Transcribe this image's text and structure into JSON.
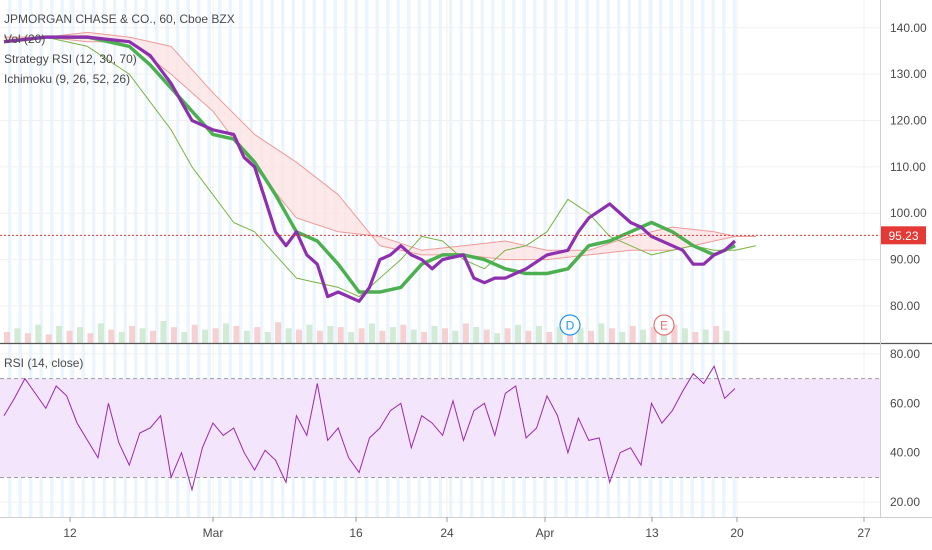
{
  "chart_data": [
    {
      "type": "line",
      "panel": "price",
      "title": "JPMORGAN CHASE & CO., 60, Cboe BZX",
      "indicators": [
        "Vol (20)",
        "Strategy RSI (12, 30, 70)",
        "Ichimoku (9, 26, 52, 26)"
      ],
      "ylim": [
        72,
        146
      ],
      "y_ticks": [
        "80.00",
        "90.00",
        "100.00",
        "110.00",
        "120.00",
        "130.00",
        "140.00"
      ],
      "last_price": "95.23",
      "markers": [
        {
          "label": "D",
          "x": 27.1
        },
        {
          "label": "E",
          "x": 31.6
        }
      ],
      "series": [
        {
          "name": "price",
          "color": "#8e2fb0",
          "x": [
            0,
            2,
            4,
            6,
            7,
            8,
            8.5,
            9,
            10,
            11,
            11.5,
            12,
            12.5,
            13,
            13.5,
            14,
            14.5,
            15,
            15.5,
            16,
            17,
            17.5,
            18,
            18.5,
            19,
            19.5,
            20,
            20.5,
            21,
            22,
            22.5,
            23,
            23.5,
            24,
            25,
            26,
            27,
            27.5,
            28,
            29,
            30,
            30.5,
            31,
            32,
            32.5,
            33,
            33.5,
            34,
            34.5,
            35
          ],
          "y": [
            137,
            138,
            138,
            137,
            134,
            128,
            124,
            120,
            118,
            117,
            112,
            110,
            103,
            96,
            93,
            96,
            91,
            89,
            82,
            83,
            81,
            84,
            90,
            91,
            93,
            91,
            90,
            88,
            90,
            91,
            86,
            85,
            86,
            86,
            88,
            91,
            92,
            96,
            99,
            102,
            98,
            97,
            95,
            93,
            92,
            89,
            89,
            91,
            92,
            94
          ]
        },
        {
          "name": "ichimoku-base",
          "color": "#4caf50",
          "x": [
            0,
            2,
            4,
            6,
            7,
            8,
            9,
            10,
            11,
            12,
            13,
            14,
            15,
            16,
            17,
            18,
            19,
            20,
            21,
            22,
            23,
            24,
            25,
            26,
            27,
            28,
            29,
            30,
            31,
            32,
            33,
            34,
            35
          ],
          "y": [
            137,
            138,
            138,
            136,
            132,
            127,
            122,
            117,
            116,
            111,
            104,
            96,
            94,
            89,
            83,
            83,
            84,
            89,
            91,
            91,
            90,
            88,
            87,
            87,
            88,
            93,
            94,
            96,
            98,
            96,
            93,
            91,
            93
          ]
        },
        {
          "name": "ichimoku-span-a",
          "color": "#ef9a9a",
          "x": [
            0,
            2,
            4,
            6,
            8,
            10,
            12,
            14,
            16,
            18,
            20,
            22,
            24,
            26,
            28,
            30,
            32,
            34,
            35,
            36
          ],
          "y": [
            137,
            138,
            137,
            137,
            130,
            122,
            110,
            99,
            96,
            95,
            92,
            93,
            94,
            92,
            92,
            95,
            97,
            96,
            95,
            95
          ]
        },
        {
          "name": "ichimoku-span-b",
          "color": "#ef9a9a",
          "x": [
            0,
            2,
            4,
            6,
            8,
            10,
            12,
            14,
            16,
            18,
            20,
            22,
            24,
            26,
            28,
            30,
            32,
            34,
            35,
            36
          ],
          "y": [
            138,
            138,
            139,
            138,
            136,
            126,
            117,
            111,
            104,
            93,
            91,
            91,
            90,
            90,
            91,
            92,
            92,
            94,
            95,
            95
          ]
        },
        {
          "name": "lagging-span",
          "color": "#7cb342",
          "x": [
            0,
            2,
            4,
            6,
            8,
            9,
            10,
            11,
            12,
            13,
            14,
            15,
            16,
            17,
            18,
            19,
            20,
            21,
            22,
            23,
            24,
            25,
            26,
            27,
            28,
            29,
            30,
            31,
            32,
            33,
            34,
            35,
            36
          ],
          "y": [
            137,
            138,
            136,
            130,
            118,
            110,
            104,
            98,
            96,
            91,
            86,
            85,
            84,
            82,
            86,
            90,
            95,
            94,
            90,
            88,
            92,
            93,
            96,
            103,
            100,
            95,
            93,
            91,
            92,
            93,
            92,
            92,
            93
          ]
        }
      ],
      "volume": [
        9,
        12,
        8,
        15,
        7,
        14,
        10,
        13,
        8,
        16,
        11,
        9,
        14,
        12,
        10,
        18,
        13,
        9,
        15,
        11,
        12,
        16,
        14,
        10,
        13,
        9,
        17,
        12,
        11,
        15,
        10,
        14,
        13,
        9,
        12,
        16,
        10,
        13,
        15,
        11,
        9,
        14,
        12,
        10,
        16,
        13,
        11,
        8,
        12,
        15,
        10,
        14,
        9,
        13,
        11,
        12,
        10,
        16,
        12,
        9,
        14,
        11,
        13,
        10,
        15,
        12,
        9,
        11,
        14,
        10
      ]
    },
    {
      "type": "line",
      "panel": "rsi",
      "title": "RSI (14, close)",
      "ylim": [
        14,
        84
      ],
      "y_ticks": [
        "20.00",
        "40.00",
        "60.00",
        "80.00"
      ],
      "bands": [
        30,
        70
      ],
      "series": [
        {
          "name": "RSI",
          "color": "#9c27b0",
          "x": [
            0,
            0.5,
            1,
            1.5,
            2,
            2.5,
            3,
            3.5,
            4,
            4.5,
            5,
            5.5,
            6,
            6.5,
            7,
            7.5,
            8,
            8.5,
            9,
            9.5,
            10,
            10.5,
            11,
            11.5,
            12,
            12.5,
            13,
            13.5,
            14,
            14.5,
            15,
            15.5,
            16,
            16.5,
            17,
            17.5,
            18,
            18.5,
            19,
            19.5,
            20,
            20.5,
            21,
            21.5,
            22,
            22.5,
            23,
            23.5,
            24,
            24.5,
            25,
            25.5,
            26,
            26.5,
            27,
            27.5,
            28,
            28.5,
            29,
            29.5,
            30,
            30.5,
            31,
            31.5,
            32,
            32.5,
            33,
            33.5,
            34,
            34.5,
            35
          ],
          "y": [
            55,
            62,
            70,
            64,
            58,
            67,
            63,
            52,
            45,
            38,
            60,
            44,
            35,
            48,
            50,
            55,
            30,
            40,
            25,
            42,
            52,
            47,
            50,
            40,
            33,
            41,
            37,
            28,
            55,
            47,
            68,
            45,
            50,
            38,
            32,
            46,
            50,
            57,
            60,
            42,
            55,
            52,
            47,
            61,
            45,
            57,
            60,
            47,
            64,
            67,
            46,
            50,
            63,
            55,
            40,
            54,
            45,
            46,
            28,
            40,
            42,
            35,
            60,
            52,
            57,
            65,
            72,
            68,
            75,
            62,
            66
          ]
        }
      ]
    }
  ],
  "x_axis": {
    "tick_labels": [
      "12",
      "Mar",
      "16",
      "24",
      "Apr",
      "13",
      "20",
      "27"
    ]
  }
}
